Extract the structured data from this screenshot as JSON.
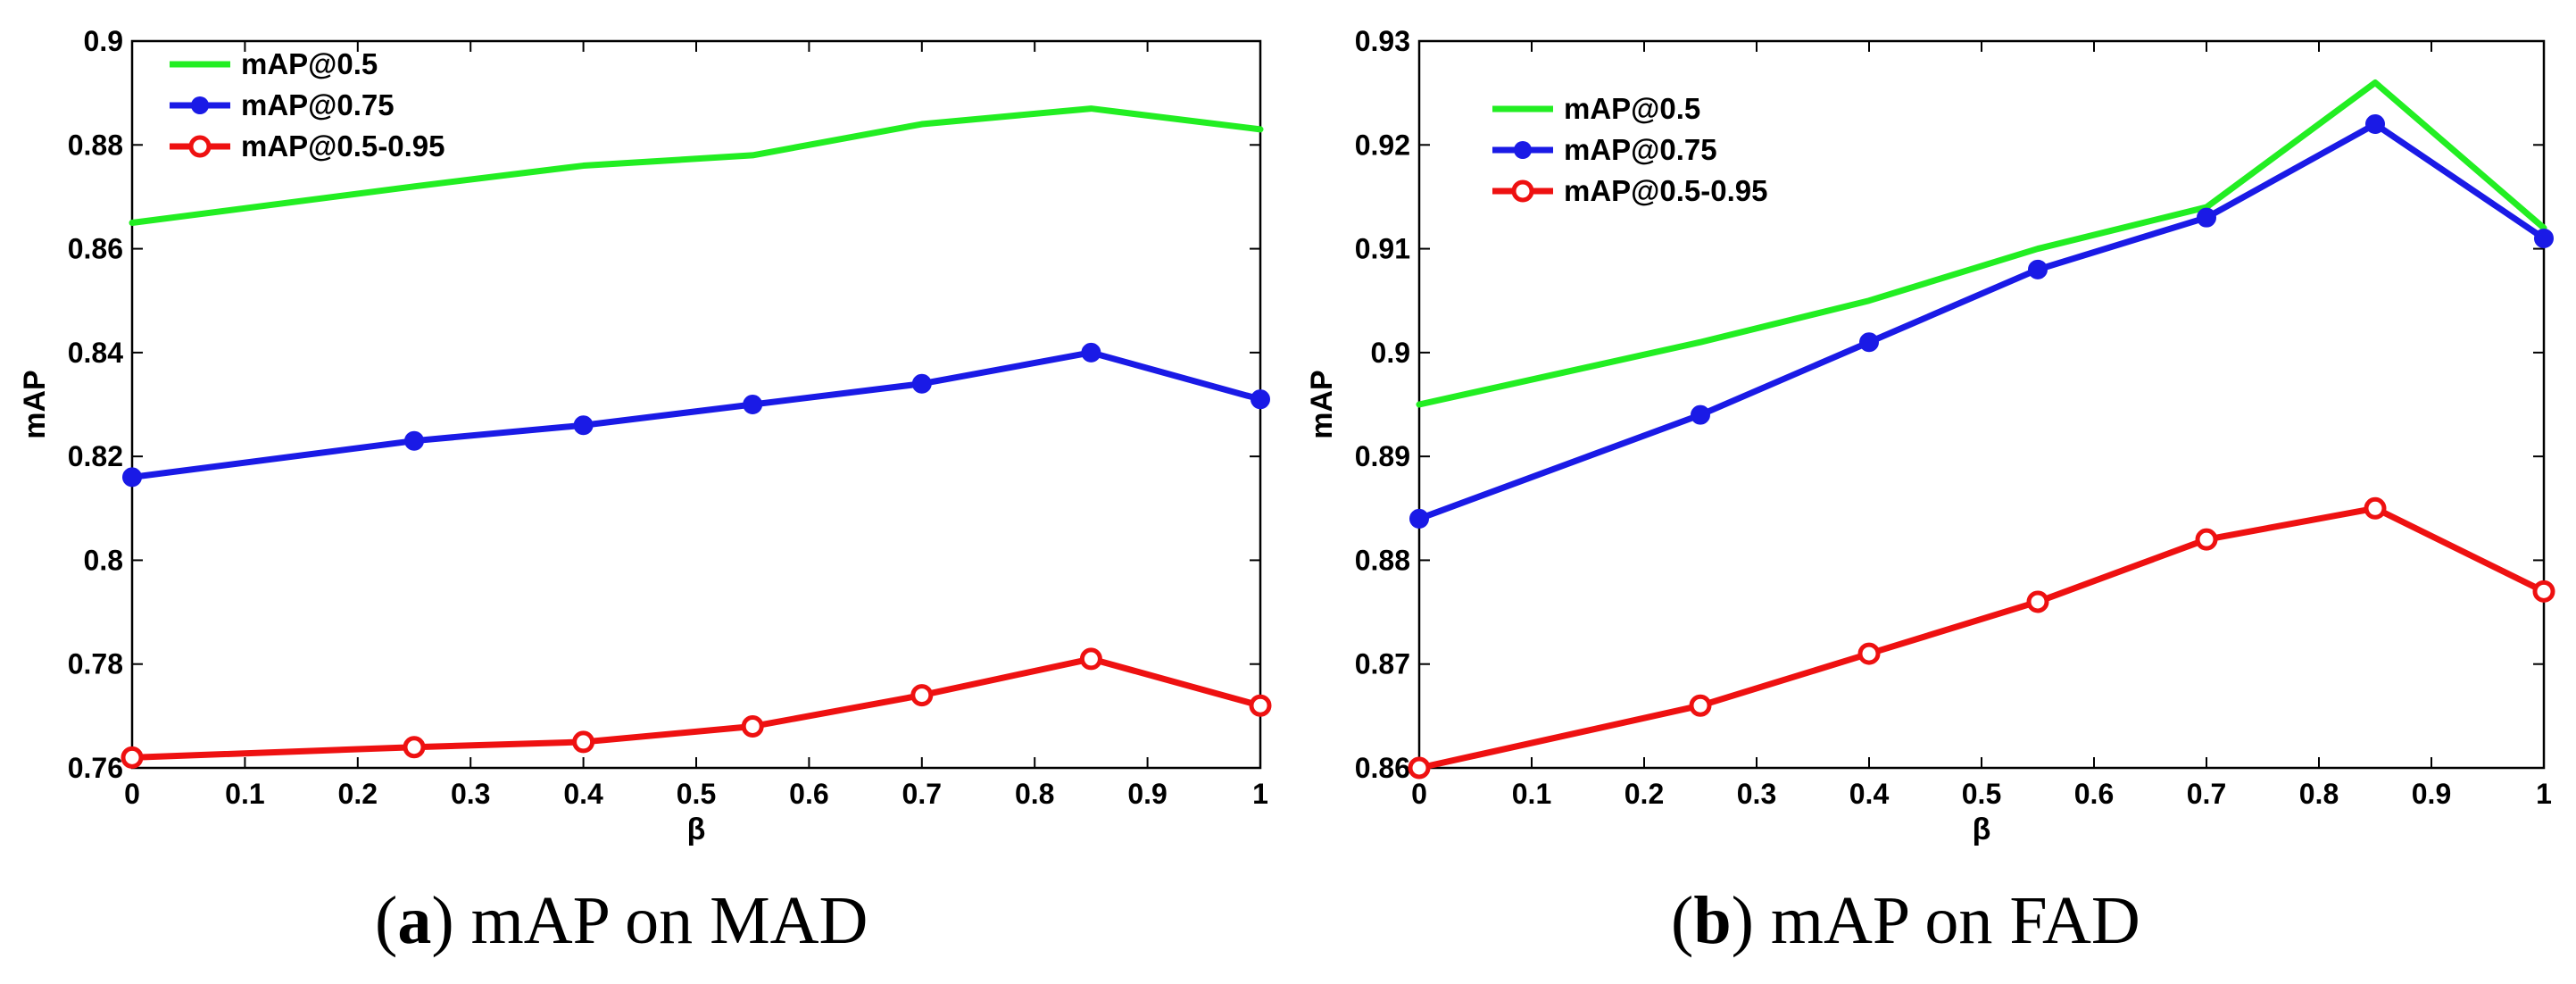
{
  "chart_data": [
    {
      "type": "line",
      "title": "",
      "caption": {
        "open": "(",
        "letter": "a",
        "close": ")",
        "text": " mAP on MAD"
      },
      "xlabel": "β",
      "ylabel": "mAP",
      "xlim": [
        0,
        1
      ],
      "ylim": [
        0.76,
        0.9
      ],
      "xticks": [
        0,
        0.1,
        0.2,
        0.3,
        0.4,
        0.5,
        0.6,
        0.7,
        0.8,
        0.9,
        1
      ],
      "xtick_labels": [
        "0",
        "0.1",
        "0.2",
        "0.3",
        "0.4",
        "0.5",
        "0.6",
        "0.7",
        "0.8",
        "0.9",
        "1"
      ],
      "yticks": [
        0.76,
        0.78,
        0.8,
        0.82,
        0.84,
        0.86,
        0.88,
        0.9
      ],
      "ytick_labels": [
        "0.76",
        "0.78",
        "0.8",
        "0.82",
        "0.84",
        "0.86",
        "0.88",
        "0.9"
      ],
      "grid": false,
      "legend_position": "top-left",
      "x": [
        0,
        0.25,
        0.4,
        0.55,
        0.7,
        0.85,
        1
      ],
      "series": [
        {
          "name": "mAP@0.5",
          "color": "#22ee22",
          "marker": "none",
          "values": [
            0.865,
            0.872,
            0.876,
            0.878,
            0.884,
            0.887,
            0.883
          ]
        },
        {
          "name": "mAP@0.75",
          "color": "#1a1ae6",
          "marker": "dot",
          "values": [
            0.816,
            0.823,
            0.826,
            0.83,
            0.834,
            0.84,
            0.831
          ]
        },
        {
          "name": "mAP@0.5-0.95",
          "color": "#ee1111",
          "marker": "circle",
          "values": [
            0.762,
            0.764,
            0.765,
            0.768,
            0.774,
            0.781,
            0.772
          ]
        }
      ]
    },
    {
      "type": "line",
      "title": "",
      "caption": {
        "open": "(",
        "letter": "b",
        "close": ")",
        "text": " mAP on FAD"
      },
      "xlabel": "β",
      "ylabel": "mAP",
      "xlim": [
        0,
        1
      ],
      "ylim": [
        0.86,
        0.93
      ],
      "xticks": [
        0,
        0.1,
        0.2,
        0.3,
        0.4,
        0.5,
        0.6,
        0.7,
        0.8,
        0.9,
        1
      ],
      "xtick_labels": [
        "0",
        "0.1",
        "0.2",
        "0.3",
        "0.4",
        "0.5",
        "0.6",
        "0.7",
        "0.8",
        "0.9",
        "1"
      ],
      "yticks": [
        0.86,
        0.87,
        0.88,
        0.89,
        0.9,
        0.91,
        0.92,
        0.93
      ],
      "ytick_labels": [
        "0.86",
        "0.87",
        "0.88",
        "0.89",
        "0.9",
        "0.91",
        "0.92",
        "0.93"
      ],
      "grid": false,
      "legend_position": "top-left",
      "x": [
        0,
        0.25,
        0.4,
        0.55,
        0.7,
        0.85,
        1
      ],
      "series": [
        {
          "name": "mAP@0.5",
          "color": "#22ee22",
          "marker": "none",
          "values": [
            0.895,
            0.901,
            0.905,
            0.91,
            0.914,
            0.926,
            0.912
          ]
        },
        {
          "name": "mAP@0.75",
          "color": "#1a1ae6",
          "marker": "dot",
          "values": [
            0.884,
            0.894,
            0.901,
            0.908,
            0.913,
            0.922,
            0.911
          ]
        },
        {
          "name": "mAP@0.5-0.95",
          "color": "#ee1111",
          "marker": "circle",
          "values": [
            0.86,
            0.866,
            0.871,
            0.876,
            0.882,
            0.885,
            0.877
          ]
        }
      ]
    }
  ]
}
